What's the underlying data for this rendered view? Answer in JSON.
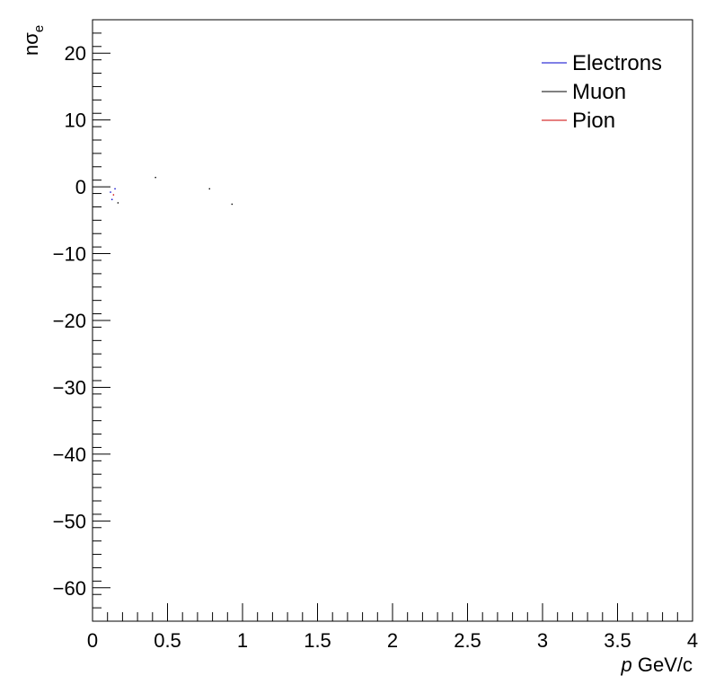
{
  "chart_data": {
    "type": "scatter",
    "title": "",
    "xlabel": {
      "italic": "p",
      "rest": " GeV/c"
    },
    "ylabel": {
      "main": "nσ",
      "subscript": "e"
    },
    "xlim": [
      0,
      4
    ],
    "ylim": [
      -65,
      25
    ],
    "x_ticks": [
      0,
      0.5,
      1,
      1.5,
      2,
      2.5,
      3,
      3.5,
      4
    ],
    "x_tick_labels": [
      "0",
      "0.5",
      "1",
      "1.5",
      "2",
      "2.5",
      "3",
      "3.5",
      "4"
    ],
    "y_ticks": [
      -60,
      -50,
      -40,
      -30,
      -20,
      -10,
      0,
      10,
      20
    ],
    "y_tick_labels": [
      "−60",
      "−50",
      "−40",
      "−30",
      "−20",
      "−10",
      "0",
      "10",
      "20"
    ],
    "grid": false,
    "legend_position": "top-right",
    "series": [
      {
        "name": "Electrons",
        "color": "#0000cc",
        "points": [
          [
            0.12,
            -0.8
          ],
          [
            0.13,
            -1.9
          ],
          [
            0.15,
            -0.3
          ]
        ]
      },
      {
        "name": "Muon",
        "color": "#000000",
        "points": [
          [
            0.17,
            -2.4
          ],
          [
            0.42,
            1.4
          ],
          [
            0.78,
            -0.3
          ],
          [
            0.93,
            -2.6
          ]
        ]
      },
      {
        "name": "Pion",
        "color": "#cc0000",
        "points": [
          [
            0.14,
            -1.2
          ]
        ]
      }
    ]
  }
}
